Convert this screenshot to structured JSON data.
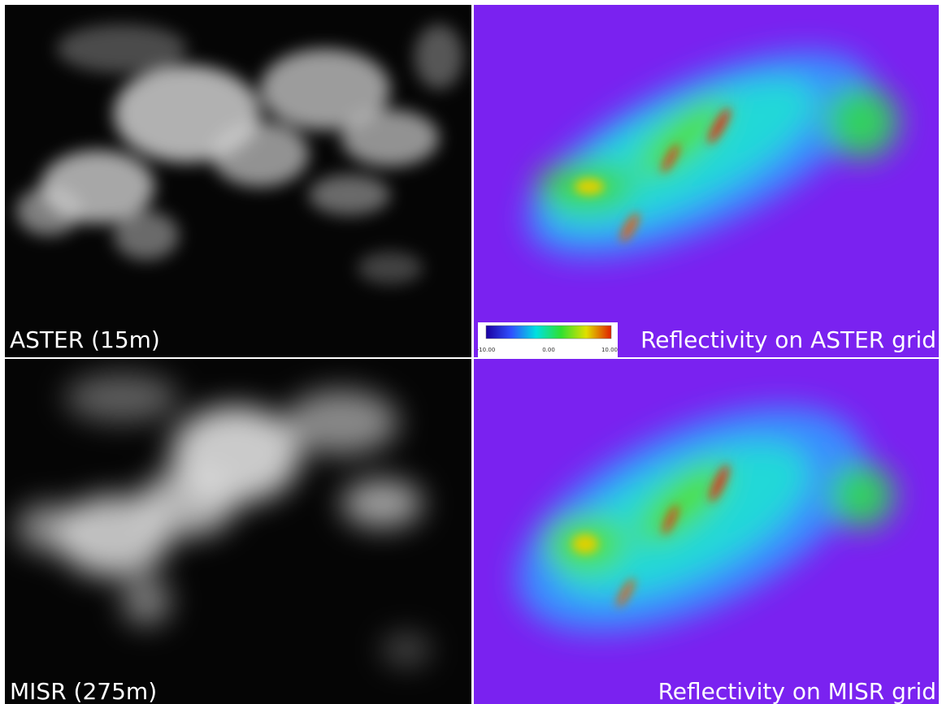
{
  "panels": [
    {
      "label": "ASTER (15m)"
    },
    {
      "label": "Reflectivity on ASTER grid"
    },
    {
      "label": "MISR (275m)"
    },
    {
      "label": "Reflectivity on MISR grid"
    }
  ],
  "colorbar": {
    "tick_labels": [
      "-10.00",
      "0.00",
      "10.00"
    ]
  }
}
